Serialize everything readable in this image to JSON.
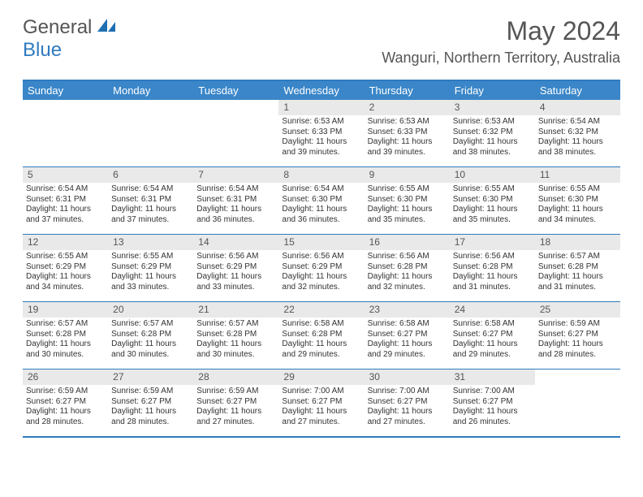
{
  "logo": {
    "text1": "General",
    "text2": "Blue"
  },
  "title": "May 2024",
  "location": "Wanguri, Northern Territory, Australia",
  "colors": {
    "header_bg": "#3a86c8",
    "border": "#2f7bbf",
    "daynum_bg": "#e9e9e9",
    "text": "#333333",
    "title_text": "#555555"
  },
  "typography": {
    "title_fontsize": 32,
    "location_fontsize": 18,
    "dayheader_fontsize": 13,
    "daynum_fontsize": 12,
    "cell_fontsize": 10
  },
  "day_names": [
    "Sunday",
    "Monday",
    "Tuesday",
    "Wednesday",
    "Thursday",
    "Friday",
    "Saturday"
  ],
  "weeks": [
    [
      {
        "empty": true
      },
      {
        "empty": true
      },
      {
        "empty": true
      },
      {
        "n": "1",
        "sr": "6:53 AM",
        "ss": "6:33 PM",
        "dl": "11 hours and 39 minutes."
      },
      {
        "n": "2",
        "sr": "6:53 AM",
        "ss": "6:33 PM",
        "dl": "11 hours and 39 minutes."
      },
      {
        "n": "3",
        "sr": "6:53 AM",
        "ss": "6:32 PM",
        "dl": "11 hours and 38 minutes."
      },
      {
        "n": "4",
        "sr": "6:54 AM",
        "ss": "6:32 PM",
        "dl": "11 hours and 38 minutes."
      }
    ],
    [
      {
        "n": "5",
        "sr": "6:54 AM",
        "ss": "6:31 PM",
        "dl": "11 hours and 37 minutes."
      },
      {
        "n": "6",
        "sr": "6:54 AM",
        "ss": "6:31 PM",
        "dl": "11 hours and 37 minutes."
      },
      {
        "n": "7",
        "sr": "6:54 AM",
        "ss": "6:31 PM",
        "dl": "11 hours and 36 minutes."
      },
      {
        "n": "8",
        "sr": "6:54 AM",
        "ss": "6:30 PM",
        "dl": "11 hours and 36 minutes."
      },
      {
        "n": "9",
        "sr": "6:55 AM",
        "ss": "6:30 PM",
        "dl": "11 hours and 35 minutes."
      },
      {
        "n": "10",
        "sr": "6:55 AM",
        "ss": "6:30 PM",
        "dl": "11 hours and 35 minutes."
      },
      {
        "n": "11",
        "sr": "6:55 AM",
        "ss": "6:30 PM",
        "dl": "11 hours and 34 minutes."
      }
    ],
    [
      {
        "n": "12",
        "sr": "6:55 AM",
        "ss": "6:29 PM",
        "dl": "11 hours and 34 minutes."
      },
      {
        "n": "13",
        "sr": "6:55 AM",
        "ss": "6:29 PM",
        "dl": "11 hours and 33 minutes."
      },
      {
        "n": "14",
        "sr": "6:56 AM",
        "ss": "6:29 PM",
        "dl": "11 hours and 33 minutes."
      },
      {
        "n": "15",
        "sr": "6:56 AM",
        "ss": "6:29 PM",
        "dl": "11 hours and 32 minutes."
      },
      {
        "n": "16",
        "sr": "6:56 AM",
        "ss": "6:28 PM",
        "dl": "11 hours and 32 minutes."
      },
      {
        "n": "17",
        "sr": "6:56 AM",
        "ss": "6:28 PM",
        "dl": "11 hours and 31 minutes."
      },
      {
        "n": "18",
        "sr": "6:57 AM",
        "ss": "6:28 PM",
        "dl": "11 hours and 31 minutes."
      }
    ],
    [
      {
        "n": "19",
        "sr": "6:57 AM",
        "ss": "6:28 PM",
        "dl": "11 hours and 30 minutes."
      },
      {
        "n": "20",
        "sr": "6:57 AM",
        "ss": "6:28 PM",
        "dl": "11 hours and 30 minutes."
      },
      {
        "n": "21",
        "sr": "6:57 AM",
        "ss": "6:28 PM",
        "dl": "11 hours and 30 minutes."
      },
      {
        "n": "22",
        "sr": "6:58 AM",
        "ss": "6:28 PM",
        "dl": "11 hours and 29 minutes."
      },
      {
        "n": "23",
        "sr": "6:58 AM",
        "ss": "6:27 PM",
        "dl": "11 hours and 29 minutes."
      },
      {
        "n": "24",
        "sr": "6:58 AM",
        "ss": "6:27 PM",
        "dl": "11 hours and 29 minutes."
      },
      {
        "n": "25",
        "sr": "6:59 AM",
        "ss": "6:27 PM",
        "dl": "11 hours and 28 minutes."
      }
    ],
    [
      {
        "n": "26",
        "sr": "6:59 AM",
        "ss": "6:27 PM",
        "dl": "11 hours and 28 minutes."
      },
      {
        "n": "27",
        "sr": "6:59 AM",
        "ss": "6:27 PM",
        "dl": "11 hours and 28 minutes."
      },
      {
        "n": "28",
        "sr": "6:59 AM",
        "ss": "6:27 PM",
        "dl": "11 hours and 27 minutes."
      },
      {
        "n": "29",
        "sr": "7:00 AM",
        "ss": "6:27 PM",
        "dl": "11 hours and 27 minutes."
      },
      {
        "n": "30",
        "sr": "7:00 AM",
        "ss": "6:27 PM",
        "dl": "11 hours and 27 minutes."
      },
      {
        "n": "31",
        "sr": "7:00 AM",
        "ss": "6:27 PM",
        "dl": "11 hours and 26 minutes."
      },
      {
        "empty": true
      }
    ]
  ],
  "labels": {
    "sunrise": "Sunrise:",
    "sunset": "Sunset:",
    "daylight": "Daylight:"
  }
}
